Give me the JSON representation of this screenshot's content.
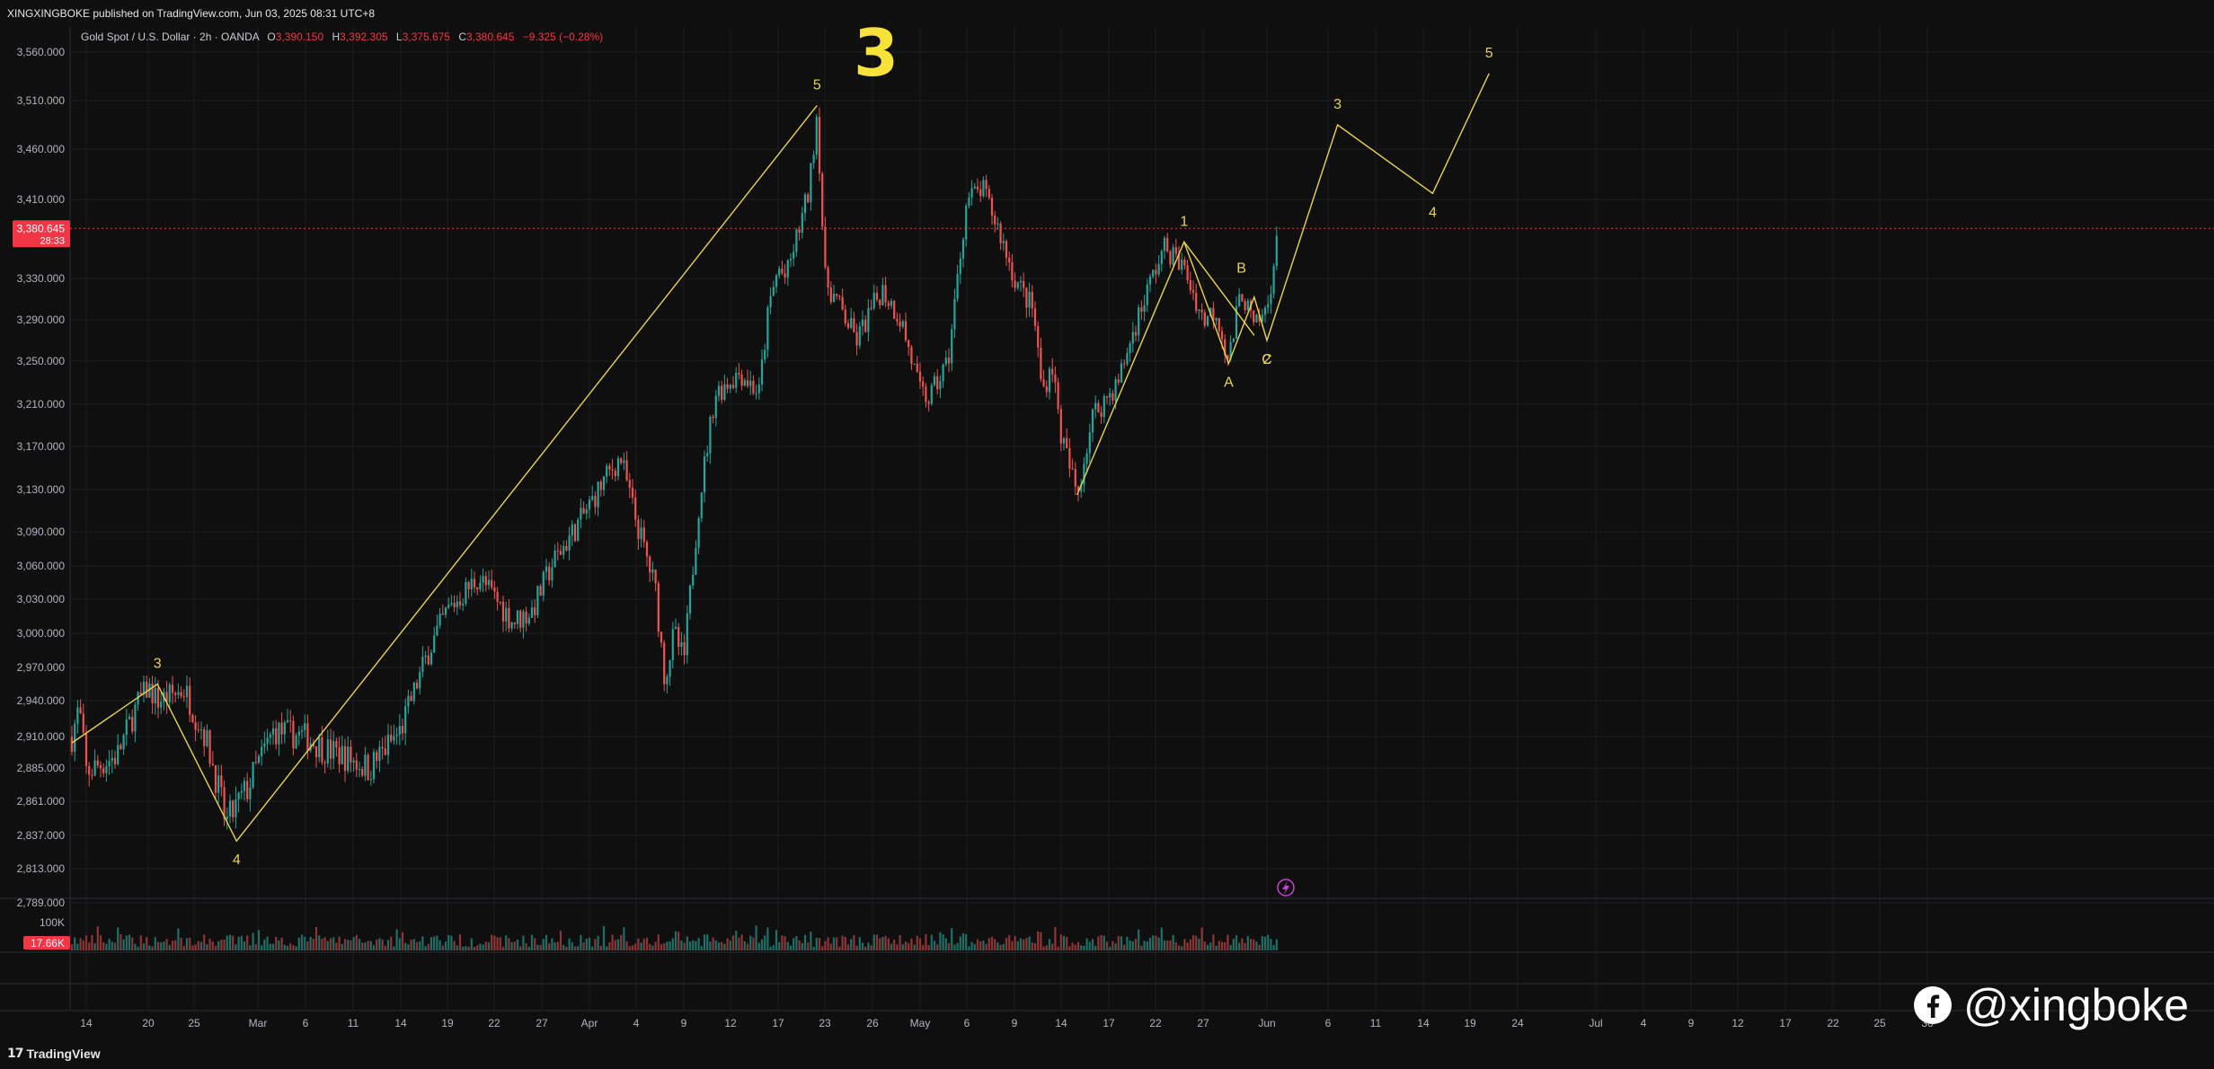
{
  "header": {
    "publisher": "XINGXINGBOKE published on TradingView.com, Jun 03, 2025 08:31 UTC+8",
    "symbol": "Gold Spot / U.S. Dollar · 2h · OANDA",
    "open_label": "O",
    "open_value": "3,390.150",
    "high_label": "H",
    "high_value": "3,392.305",
    "low_label": "L",
    "low_value": "3,375.675",
    "close_label": "C",
    "close_value": "3,380.645",
    "change_value": "−9.325 (−0.28%)"
  },
  "price_tag": {
    "price": "3,380.645",
    "countdown": "28:33",
    "value": 3380.645
  },
  "volume_tag": {
    "label": "17.66K",
    "axis_label": "100K"
  },
  "footer": {
    "brand": "TradingView"
  },
  "watermark": {
    "handle": "@xingboke"
  },
  "colors": {
    "background": "#0f0f0f",
    "up": "#26a69a",
    "down": "#ef5350",
    "wave": "#e8d44d",
    "price_line": "#f23645",
    "alert": "#c940d8"
  },
  "icons": {
    "watermark": "facebook-icon",
    "alert": "lightning-icon"
  },
  "chart_data": {
    "type": "candlestick",
    "instrument": "Gold Spot / U.S. Dollar",
    "interval": "2h",
    "y_ticks": [
      3560,
      3510,
      3460,
      3410,
      3330,
      3290,
      3250,
      3210,
      3170,
      3130,
      3090,
      3060,
      3030,
      3000,
      2970,
      2940,
      2910,
      2885,
      2861,
      2837,
      2813,
      2789
    ],
    "y_tick_labels": [
      "3,560.000",
      "3,510.000",
      "3,460.000",
      "3,410.000",
      "3,330.000",
      "3,290.000",
      "3,250.000",
      "3,210.000",
      "3,170.000",
      "3,130.000",
      "3,090.000",
      "3,060.000",
      "3,030.000",
      "3,000.000",
      "2,970.000",
      "2,940.000",
      "2,910.000",
      "2,885.000",
      "2,861.000",
      "2,837.000",
      "2,813.000",
      "2,789.000"
    ],
    "x_ticks": [
      "14",
      "20",
      "25",
      "Mar",
      "6",
      "11",
      "14",
      "19",
      "22",
      "27",
      "Apr",
      "4",
      "9",
      "12",
      "17",
      "23",
      "26",
      "May",
      "6",
      "9",
      "14",
      "17",
      "22",
      "27",
      "Jun",
      "6",
      "11",
      "14",
      "19",
      "24",
      "Jul",
      "4",
      "9",
      "12",
      "17",
      "22",
      "25",
      "30"
    ],
    "price_path": [
      [
        "2025-02-10",
        2910
      ],
      [
        "2025-02-12",
        2935
      ],
      [
        "2025-02-14",
        2882
      ],
      [
        "2025-02-17",
        2895
      ],
      [
        "2025-02-19",
        2938
      ],
      [
        "2025-02-20",
        2952
      ],
      [
        "2025-02-21",
        2940
      ],
      [
        "2025-02-24",
        2950
      ],
      [
        "2025-02-25",
        2930
      ],
      [
        "2025-02-26",
        2912
      ],
      [
        "2025-02-27",
        2880
      ],
      [
        "2025-02-28",
        2845
      ],
      [
        "2025-03-02",
        2870
      ],
      [
        "2025-03-04",
        2915
      ],
      [
        "2025-03-06",
        2910
      ],
      [
        "2025-03-08",
        2900
      ],
      [
        "2025-03-10",
        2895
      ],
      [
        "2025-03-12",
        2885
      ],
      [
        "2025-03-14",
        2915
      ],
      [
        "2025-03-17",
        2985
      ],
      [
        "2025-03-19",
        3020
      ],
      [
        "2025-03-21",
        3050
      ],
      [
        "2025-03-24",
        3010
      ],
      [
        "2025-03-26",
        3020
      ],
      [
        "2025-03-28",
        3060
      ],
      [
        "2025-03-31",
        3100
      ],
      [
        "2025-04-02",
        3140
      ],
      [
        "2025-04-03",
        3160
      ],
      [
        "2025-04-04",
        3100
      ],
      [
        "2025-04-06",
        3040
      ],
      [
        "2025-04-07",
        2960
      ],
      [
        "2025-04-08",
        3000
      ],
      [
        "2025-04-09",
        2975
      ],
      [
        "2025-04-10",
        3120
      ],
      [
        "2025-04-11",
        3220
      ],
      [
        "2025-04-13",
        3240
      ],
      [
        "2025-04-15",
        3220
      ],
      [
        "2025-04-16",
        3300
      ],
      [
        "2025-04-17",
        3340
      ],
      [
        "2025-04-18",
        3330
      ],
      [
        "2025-04-21",
        3420
      ],
      [
        "2025-04-22",
        3500
      ],
      [
        "2025-04-23",
        3330
      ],
      [
        "2025-04-24",
        3300
      ],
      [
        "2025-04-25",
        3270
      ],
      [
        "2025-04-27",
        3320
      ],
      [
        "2025-04-29",
        3290
      ],
      [
        "2025-05-01",
        3220
      ],
      [
        "2025-05-02",
        3215
      ],
      [
        "2025-05-04",
        3250
      ],
      [
        "2025-05-06",
        3410
      ],
      [
        "2025-05-07",
        3420
      ],
      [
        "2025-05-08",
        3380
      ],
      [
        "2025-05-09",
        3330
      ],
      [
        "2025-05-11",
        3300
      ],
      [
        "2025-05-12",
        3220
      ],
      [
        "2025-05-13",
        3250
      ],
      [
        "2025-05-14",
        3180
      ],
      [
        "2025-05-15",
        3125
      ],
      [
        "2025-05-16",
        3200
      ],
      [
        "2025-05-18",
        3230
      ],
      [
        "2025-05-20",
        3290
      ],
      [
        "2025-05-22",
        3340
      ],
      [
        "2025-05-23",
        3362
      ],
      [
        "2025-05-25",
        3340
      ],
      [
        "2025-05-27",
        3290
      ],
      [
        "2025-05-28",
        3300
      ],
      [
        "2025-05-29",
        3250
      ],
      [
        "2025-05-30",
        3320
      ],
      [
        "2025-05-31",
        3280
      ],
      [
        "2025-06-01",
        3300
      ],
      [
        "2025-06-02",
        3380
      ]
    ],
    "wave_lines": [
      {
        "name": "big",
        "points": [
          [
            "2025-02-10",
            2905
          ],
          [
            "2025-02-21",
            2955
          ],
          [
            "2025-03-01",
            2833
          ],
          [
            "2025-04-22",
            3505
          ]
        ]
      },
      {
        "name": "projection",
        "points": [
          [
            "2025-05-15",
            3125
          ],
          [
            "2025-05-25",
            3367
          ],
          [
            "2025-05-29",
            3248
          ],
          [
            "2025-05-31",
            3312
          ],
          [
            "2025-06-01",
            3270
          ],
          [
            "2025-06-07",
            3485
          ],
          [
            "2025-06-15",
            3416
          ],
          [
            "2025-06-21",
            3538
          ]
        ]
      },
      {
        "name": "abc",
        "points": [
          [
            "2025-05-25",
            3367
          ],
          [
            "2025-05-31",
            3275
          ]
        ]
      }
    ],
    "wave_labels": [
      {
        "text": "3",
        "x": "2025-02-21",
        "y": 2955,
        "pos": "above"
      },
      {
        "text": "4",
        "x": "2025-03-01",
        "y": 2833,
        "pos": "below"
      },
      {
        "text": "5",
        "x": "2025-04-22",
        "y": 3505,
        "pos": "above"
      },
      {
        "text": "1",
        "x": "2025-05-25",
        "y": 3367,
        "pos": "above"
      },
      {
        "text": "A",
        "x": "2025-05-29",
        "y": 3248,
        "pos": "below"
      },
      {
        "text": "B",
        "x": "2025-05-30",
        "y": 3320,
        "pos": "above"
      },
      {
        "text": "C",
        "x": "2025-06-01",
        "y": 3270,
        "pos": "below"
      },
      {
        "text": "2",
        "x": "2025-06-01",
        "y": 3270,
        "pos": "below"
      },
      {
        "text": "3",
        "x": "2025-06-07",
        "y": 3485,
        "pos": "above"
      },
      {
        "text": "4",
        "x": "2025-06-15",
        "y": 3416,
        "pos": "below"
      },
      {
        "text": "5",
        "x": "2025-06-21",
        "y": 3538,
        "pos": "above"
      }
    ],
    "handwritten_label": "3",
    "grid": true,
    "volume_axis": [
      0,
      100000
    ]
  }
}
